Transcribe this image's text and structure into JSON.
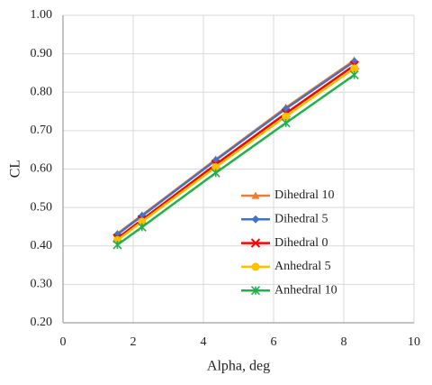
{
  "chart_data": {
    "type": "line",
    "x_label": "Alpha, deg",
    "y_label": "CL",
    "x": [
      1.55,
      2.25,
      4.35,
      6.35,
      8.3
    ],
    "series": [
      {
        "name": "Dihedral 10",
        "color": "#ed7d31",
        "marker": "triangle",
        "values": [
          0.432,
          0.48,
          0.625,
          0.76,
          0.883
        ]
      },
      {
        "name": "Dihedral 5",
        "color": "#4472c4",
        "marker": "diamond",
        "values": [
          0.43,
          0.478,
          0.623,
          0.757,
          0.88
        ]
      },
      {
        "name": "Dihedral 0",
        "color": "#ff0000",
        "marker": "x",
        "values": [
          0.42,
          0.468,
          0.612,
          0.745,
          0.87
        ]
      },
      {
        "name": "Anhedral 5",
        "color": "#ffc000",
        "marker": "circle",
        "values": [
          0.415,
          0.463,
          0.605,
          0.737,
          0.862
        ]
      },
      {
        "name": "Anhedral 10",
        "color": "#21b04b",
        "marker": "asterisk",
        "values": [
          0.403,
          0.449,
          0.59,
          0.72,
          0.845
        ]
      }
    ],
    "xlim": [
      0,
      10
    ],
    "xticks": [
      0,
      2,
      4,
      6,
      8,
      10
    ],
    "ylim": [
      0.2,
      1.0
    ],
    "yticks": [
      {
        "value": 0.2,
        "label": "0.20"
      },
      {
        "value": 0.3,
        "label": "0.30"
      },
      {
        "value": 0.4,
        "label": "0.40"
      },
      {
        "value": 0.5,
        "label": "0.50"
      },
      {
        "value": 0.6,
        "label": "0.60"
      },
      {
        "value": 0.7,
        "label": "0.70"
      },
      {
        "value": 0.8,
        "label": "0.80"
      },
      {
        "value": 0.9,
        "label": "0.90"
      },
      {
        "value": 1.0,
        "label": "1.00"
      }
    ],
    "grid": true,
    "legend": "lower-right"
  }
}
